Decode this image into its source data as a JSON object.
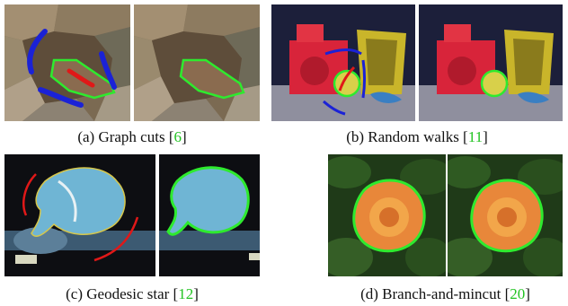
{
  "colors": {
    "citation": "#22c322",
    "foreground_stroke": "#2eea2e",
    "background_stroke": "#1b22d6",
    "red_stroke": "#e01818"
  },
  "panels": [
    {
      "caption_prefix": "(a) Graph cuts [",
      "ref": "6",
      "caption_suffix": "]"
    },
    {
      "caption_prefix": "(b) Random walks [",
      "ref": "11",
      "caption_suffix": "]"
    },
    {
      "caption_prefix": "(c) Geodesic star [",
      "ref": "12",
      "caption_suffix": "]"
    },
    {
      "caption_prefix": "(d) Branch-and-mincut [",
      "ref": "20",
      "caption_suffix": "]"
    }
  ]
}
